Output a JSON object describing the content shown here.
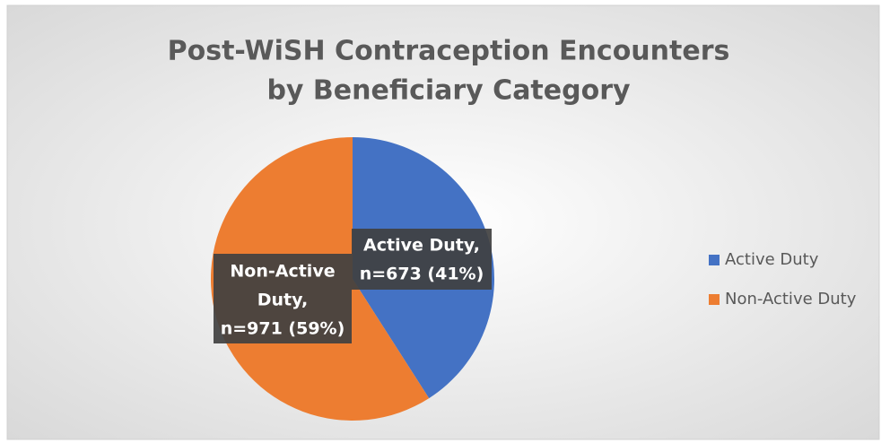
{
  "chart_data": {
    "type": "pie",
    "title": [
      "Post-WiSH Contraception Encounters",
      "by Beneficiary Category"
    ],
    "categories": [
      "Active Duty",
      "Non-Active Duty"
    ],
    "values": [
      673,
      971
    ],
    "value_labels": [
      [
        "Active Duty,",
        "n=673 (41%)"
      ],
      [
        "Non-Active",
        "Duty,",
        "n=971 (59%)"
      ]
    ],
    "colors": [
      "#4472c4",
      "#ed7d31"
    ],
    "legend": "right"
  }
}
